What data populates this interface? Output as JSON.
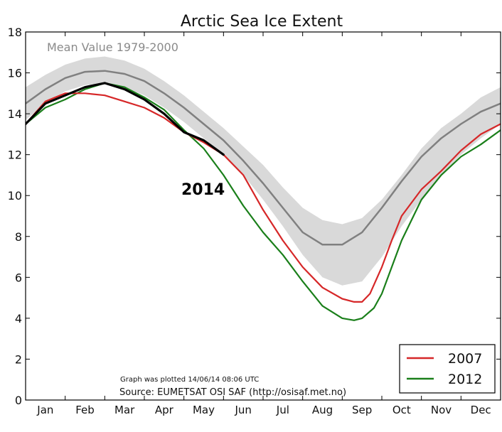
{
  "chart_data": {
    "type": "line",
    "title": "Arctic Sea Ice Extent",
    "xlabel": "",
    "ylabel": "",
    "ylim": [
      0,
      18
    ],
    "yticks": [
      0,
      2,
      4,
      6,
      8,
      10,
      12,
      14,
      16,
      18
    ],
    "xlim": [
      0,
      12
    ],
    "months": [
      "Jan",
      "Feb",
      "Mar",
      "Apr",
      "May",
      "Jun",
      "Jul",
      "Aug",
      "Sep",
      "Oct",
      "Nov",
      "Dec"
    ],
    "grid": false,
    "legend": {
      "placement": "bottom-right",
      "entries": [
        "2007",
        "2012"
      ]
    },
    "band_label": "Mean Value 1979-2000",
    "year_label": "2014",
    "footnote_1": "Graph was plotted 14/06/14 08:06 UTC",
    "footnote_2": "Source: EUMETSAT OSI SAF (http://osisaf.met.no)",
    "colors": {
      "mean": "#808080",
      "band": "#d9d9d9",
      "s2007": "#d62728",
      "s2012": "#1a7f1a",
      "s2014": "#000000"
    },
    "mean_band": {
      "x": [
        0,
        0.5,
        1,
        1.5,
        2,
        2.5,
        3,
        3.5,
        4,
        4.5,
        5,
        5.5,
        6,
        6.5,
        7,
        7.5,
        8,
        8.5,
        9,
        9.5,
        10,
        10.5,
        11,
        11.5,
        12
      ],
      "lower": [
        13.7,
        14.5,
        15.1,
        15.4,
        15.5,
        15.3,
        14.9,
        14.3,
        13.6,
        12.8,
        12.0,
        11.0,
        9.8,
        8.5,
        7.1,
        6.0,
        5.6,
        5.8,
        7.0,
        8.5,
        9.8,
        11.0,
        12.0,
        12.8,
        13.5
      ],
      "upper": [
        15.3,
        15.9,
        16.4,
        16.7,
        16.8,
        16.6,
        16.2,
        15.6,
        14.9,
        14.1,
        13.3,
        12.4,
        11.5,
        10.4,
        9.4,
        8.8,
        8.6,
        8.9,
        9.8,
        11.0,
        12.3,
        13.3,
        14.0,
        14.8,
        15.3
      ]
    },
    "series": [
      {
        "name": "Mean Value 1979-2000",
        "x": [
          0,
          0.5,
          1,
          1.5,
          2,
          2.5,
          3,
          3.5,
          4,
          4.5,
          5,
          5.5,
          6,
          6.5,
          7,
          7.5,
          8,
          8.5,
          9,
          9.5,
          10,
          10.5,
          11,
          11.5,
          12
        ],
        "y": [
          14.5,
          15.2,
          15.75,
          16.05,
          16.1,
          15.95,
          15.6,
          15.0,
          14.3,
          13.5,
          12.7,
          11.7,
          10.6,
          9.4,
          8.2,
          7.6,
          7.6,
          8.2,
          9.4,
          10.7,
          11.9,
          12.8,
          13.5,
          14.1,
          14.5
        ]
      },
      {
        "name": "2007",
        "x": [
          0,
          0.5,
          1,
          1.5,
          2,
          2.5,
          3,
          3.5,
          4,
          4.5,
          5,
          5.5,
          6,
          6.5,
          7,
          7.5,
          8,
          8.3,
          8.5,
          8.7,
          9,
          9.25,
          9.5,
          10,
          10.5,
          11,
          11.5,
          12
        ],
        "y": [
          13.5,
          14.6,
          15.0,
          15.0,
          14.9,
          14.6,
          14.3,
          13.8,
          13.1,
          12.6,
          12.0,
          11.0,
          9.3,
          7.8,
          6.5,
          5.5,
          4.95,
          4.8,
          4.8,
          5.2,
          6.5,
          7.8,
          9.0,
          10.3,
          11.2,
          12.2,
          13.0,
          13.5
        ]
      },
      {
        "name": "2012",
        "x": [
          0,
          0.5,
          1,
          1.5,
          2,
          2.5,
          3,
          3.5,
          4,
          4.5,
          5,
          5.5,
          6,
          6.5,
          7,
          7.5,
          8,
          8.3,
          8.5,
          8.8,
          9,
          9.5,
          10,
          10.5,
          11,
          11.5,
          12
        ],
        "y": [
          13.5,
          14.3,
          14.7,
          15.2,
          15.5,
          15.3,
          14.8,
          14.2,
          13.2,
          12.3,
          11.0,
          9.5,
          8.2,
          7.1,
          5.8,
          4.6,
          4.0,
          3.9,
          4.0,
          4.5,
          5.2,
          7.8,
          9.8,
          11.0,
          11.9,
          12.5,
          13.2
        ]
      },
      {
        "name": "2014",
        "x": [
          0,
          0.5,
          1,
          1.5,
          2,
          2.5,
          3,
          3.5,
          4,
          4.5,
          5
        ],
        "y": [
          13.5,
          14.5,
          14.9,
          15.3,
          15.5,
          15.2,
          14.7,
          14.0,
          13.1,
          12.7,
          12.0
        ]
      }
    ]
  }
}
